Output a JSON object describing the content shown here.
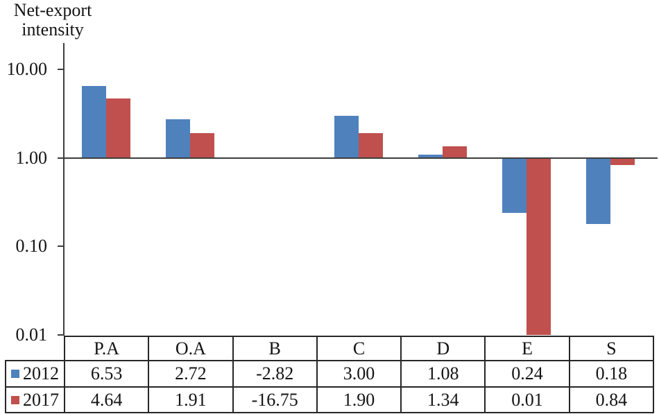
{
  "y_axis_title_line1": "Net-export",
  "y_axis_title_line2": "intensity",
  "colors": {
    "series_2012": "#4F81BD",
    "series_2017": "#C0504D",
    "axis_line": "#3d3d3d",
    "table_border": "#262626"
  },
  "chart_data": {
    "type": "bar",
    "scale": "log",
    "title": "Net-export intensity",
    "ylabel": "Net-export intensity",
    "categories": [
      "P.A",
      "O.A",
      "B",
      "C",
      "D",
      "E",
      "S"
    ],
    "series": [
      {
        "name": "2012",
        "color": "#4F81BD",
        "values": [
          6.53,
          2.72,
          -2.82,
          3.0,
          1.08,
          0.24,
          0.18
        ]
      },
      {
        "name": "2017",
        "color": "#C0504D",
        "values": [
          4.64,
          1.91,
          -16.75,
          1.9,
          1.34,
          0.01,
          0.84
        ]
      }
    ],
    "baseline": 1.0,
    "ylim": [
      0.01,
      10
    ],
    "yticks": [
      {
        "value": 10,
        "label": "10.00"
      },
      {
        "value": 1,
        "label": "1.00"
      },
      {
        "value": 0.1,
        "label": "0.10"
      },
      {
        "value": 0.01,
        "label": "0.01"
      }
    ],
    "grid": false,
    "legend_position": "table-left",
    "note": "Negative values are not drawn on the log-scale chart"
  },
  "table": {
    "header": [
      "P.A",
      "O.A",
      "B",
      "C",
      "D",
      "E",
      "S"
    ],
    "rows": [
      {
        "label": "2012",
        "values": [
          "6.53",
          "2.72",
          "-2.82",
          "3.00",
          "1.08",
          "0.24",
          "0.18"
        ]
      },
      {
        "label": "2017",
        "values": [
          "4.64",
          "1.91",
          "-16.75",
          "1.90",
          "1.34",
          "0.01",
          "0.84"
        ]
      }
    ]
  }
}
